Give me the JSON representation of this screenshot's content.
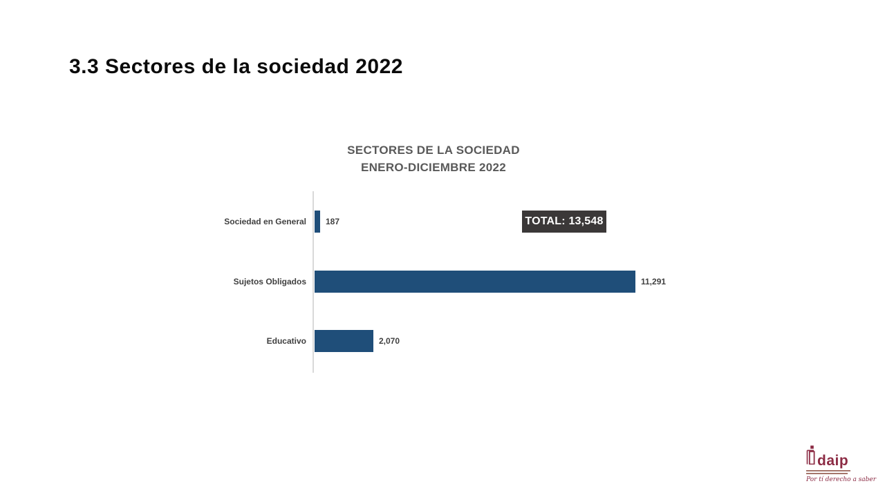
{
  "slide": {
    "title": "3.3 Sectores de la sociedad 2022"
  },
  "chart": {
    "title_line1": "SECTORES DE LA SOCIEDAD",
    "title_line2": "ENERO-DICIEMBRE 2022",
    "total_label": "TOTAL: 13,548"
  },
  "chart_data": {
    "type": "bar",
    "orientation": "horizontal",
    "title": "SECTORES DE LA SOCIEDAD ENERO-DICIEMBRE 2022",
    "categories": [
      "Sociedad en General",
      "Sujetos Obligados",
      "Educativo"
    ],
    "values": [
      187,
      11291,
      2070
    ],
    "value_labels": [
      "187",
      "11,291",
      "2,070"
    ],
    "total": 13548,
    "xlim": [
      0,
      11291
    ],
    "grid": false,
    "legend": false,
    "bar_color": "#1F4E79",
    "axis_line_color": "#D9D9D9",
    "title_color": "#595959",
    "label_color": "#404040",
    "total_box_bg": "#3B3838",
    "total_box_text_color": "#FFFFFF"
  },
  "logo": {
    "brand": "idaip",
    "wordmark": "daip",
    "tagline": "Por tí derecho a saber",
    "color": "#8C2B44"
  }
}
